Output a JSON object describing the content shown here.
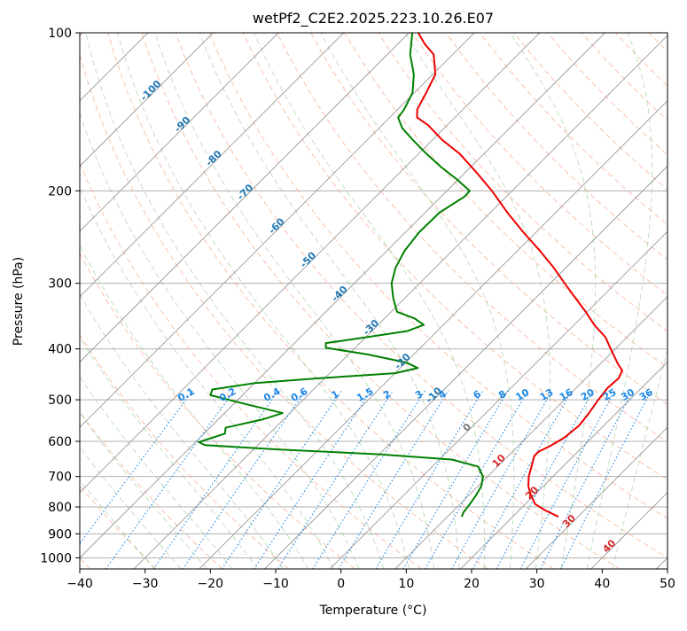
{
  "chart_data": {
    "type": "skew-t log-p diagram",
    "title": "wetPf2_C2E2.2025.223.10.26.E07",
    "xlabel": "Temperature (°C)",
    "ylabel": "Pressure (hPa)",
    "xlim": [
      -40,
      50
    ],
    "ylim": [
      1050,
      100
    ],
    "y_scale": "log",
    "grid": true,
    "x_ticks": [
      "−40",
      "−30",
      "−20",
      "−10",
      "0",
      "10",
      "20",
      "30",
      "40",
      "50"
    ],
    "x_tick_values": [
      -40,
      -30,
      -20,
      -10,
      0,
      10,
      20,
      30,
      40,
      50
    ],
    "y_ticks": [
      "100",
      "200",
      "300",
      "400",
      "500",
      "600",
      "700",
      "800",
      "900",
      "1000"
    ],
    "y_tick_values": [
      100,
      200,
      300,
      400,
      500,
      600,
      700,
      800,
      900,
      1000
    ],
    "isotherm_labels": [
      "-100",
      "-90",
      "-80",
      "-70",
      "-60",
      "-50",
      "-40",
      "-30",
      "-20",
      "-10",
      "0",
      "10",
      "20",
      "30",
      "40"
    ],
    "isotherm_label_values": [
      -100,
      -90,
      -80,
      -70,
      -60,
      -50,
      -40,
      -30,
      -20,
      -10,
      0,
      10,
      20,
      30,
      40
    ],
    "mixing_ratio_labels": [
      "0.1",
      "0.2",
      "0.4",
      "0.6",
      "1",
      "1.5",
      "2",
      "3",
      "4",
      "6",
      "8",
      "10",
      "13",
      "16",
      "20",
      "25",
      "30",
      "36"
    ],
    "mixing_ratio_values": [
      0.1,
      0.2,
      0.4,
      0.6,
      1,
      1.5,
      2,
      3,
      4,
      6,
      8,
      10,
      13,
      16,
      20,
      25,
      30,
      36
    ],
    "series": [
      {
        "role": "temperature",
        "color": "#ee0000",
        "points": [
          {
            "p": 835,
            "t": 27.0
          },
          {
            "p": 812,
            "t": 24.0
          },
          {
            "p": 790,
            "t": 21.5
          },
          {
            "p": 760,
            "t": 19.5
          },
          {
            "p": 730,
            "t": 17.7
          },
          {
            "p": 700,
            "t": 16.3
          },
          {
            "p": 670,
            "t": 15.2
          },
          {
            "p": 640,
            "t": 14.0
          },
          {
            "p": 628,
            "t": 14.0
          },
          {
            "p": 612,
            "t": 14.9
          },
          {
            "p": 590,
            "t": 15.8
          },
          {
            "p": 560,
            "t": 16.2
          },
          {
            "p": 530,
            "t": 15.8
          },
          {
            "p": 500,
            "t": 15.2
          },
          {
            "p": 475,
            "t": 14.8
          },
          {
            "p": 455,
            "t": 15.0
          },
          {
            "p": 440,
            "t": 14.4
          },
          {
            "p": 428,
            "t": 12.8
          },
          {
            "p": 400,
            "t": 9.3
          },
          {
            "p": 380,
            "t": 6.7
          },
          {
            "p": 360,
            "t": 3.1
          },
          {
            "p": 340,
            "t": -0.2
          },
          {
            "p": 320,
            "t": -3.9
          },
          {
            "p": 300,
            "t": -7.8
          },
          {
            "p": 280,
            "t": -11.9
          },
          {
            "p": 260,
            "t": -16.6
          },
          {
            "p": 240,
            "t": -21.9
          },
          {
            "p": 220,
            "t": -27.4
          },
          {
            "p": 200,
            "t": -33.1
          },
          {
            "p": 185,
            "t": -38.1
          },
          {
            "p": 170,
            "t": -43.7
          },
          {
            "p": 160,
            "t": -48.5
          },
          {
            "p": 150,
            "t": -52.9
          },
          {
            "p": 145,
            "t": -55.8
          },
          {
            "p": 140,
            "t": -57.0
          },
          {
            "p": 130,
            "t": -58.2
          },
          {
            "p": 120,
            "t": -59.6
          },
          {
            "p": 110,
            "t": -62.9
          },
          {
            "p": 105,
            "t": -65.9
          },
          {
            "p": 100,
            "t": -68.6
          }
        ]
      },
      {
        "role": "dewpoint",
        "color": "#008000",
        "points": [
          {
            "p": 835,
            "t": 12.2
          },
          {
            "p": 820,
            "t": 11.8
          },
          {
            "p": 790,
            "t": 11.5
          },
          {
            "p": 760,
            "t": 11.1
          },
          {
            "p": 730,
            "t": 10.5
          },
          {
            "p": 700,
            "t": 9.3
          },
          {
            "p": 670,
            "t": 7.0
          },
          {
            "p": 650,
            "t": 2.0
          },
          {
            "p": 635,
            "t": -10.0
          },
          {
            "p": 622,
            "t": -26.0
          },
          {
            "p": 610,
            "t": -38.1
          },
          {
            "p": 602,
            "t": -39.5
          },
          {
            "p": 580,
            "t": -36.8
          },
          {
            "p": 565,
            "t": -37.6
          },
          {
            "p": 545,
            "t": -33.2
          },
          {
            "p": 530,
            "t": -31.1
          },
          {
            "p": 510,
            "t": -38.0
          },
          {
            "p": 490,
            "t": -44.9
          },
          {
            "p": 478,
            "t": -45.5
          },
          {
            "p": 465,
            "t": -40.1
          },
          {
            "p": 455,
            "t": -31.0
          },
          {
            "p": 445,
            "t": -20.0
          },
          {
            "p": 435,
            "t": -17.3
          },
          {
            "p": 425,
            "t": -19.8
          },
          {
            "p": 410,
            "t": -27.0
          },
          {
            "p": 398,
            "t": -34.5
          },
          {
            "p": 390,
            "t": -35.2
          },
          {
            "p": 380,
            "t": -29.9
          },
          {
            "p": 370,
            "t": -24.6
          },
          {
            "p": 360,
            "t": -23.0
          },
          {
            "p": 350,
            "t": -25.4
          },
          {
            "p": 340,
            "t": -29.1
          },
          {
            "p": 320,
            "t": -31.8
          },
          {
            "p": 300,
            "t": -34.3
          },
          {
            "p": 280,
            "t": -36.1
          },
          {
            "p": 260,
            "t": -37.3
          },
          {
            "p": 240,
            "t": -37.9
          },
          {
            "p": 220,
            "t": -37.8
          },
          {
            "p": 205,
            "t": -36.4
          },
          {
            "p": 200,
            "t": -36.5
          },
          {
            "p": 190,
            "t": -40.3
          },
          {
            "p": 180,
            "t": -44.6
          },
          {
            "p": 170,
            "t": -48.8
          },
          {
            "p": 160,
            "t": -53.0
          },
          {
            "p": 152,
            "t": -56.4
          },
          {
            "p": 145,
            "t": -58.7
          },
          {
            "p": 140,
            "t": -59.0
          },
          {
            "p": 130,
            "t": -60.3
          },
          {
            "p": 120,
            "t": -62.9
          },
          {
            "p": 110,
            "t": -66.5
          },
          {
            "p": 100,
            "t": -69.5
          }
        ]
      }
    ]
  }
}
